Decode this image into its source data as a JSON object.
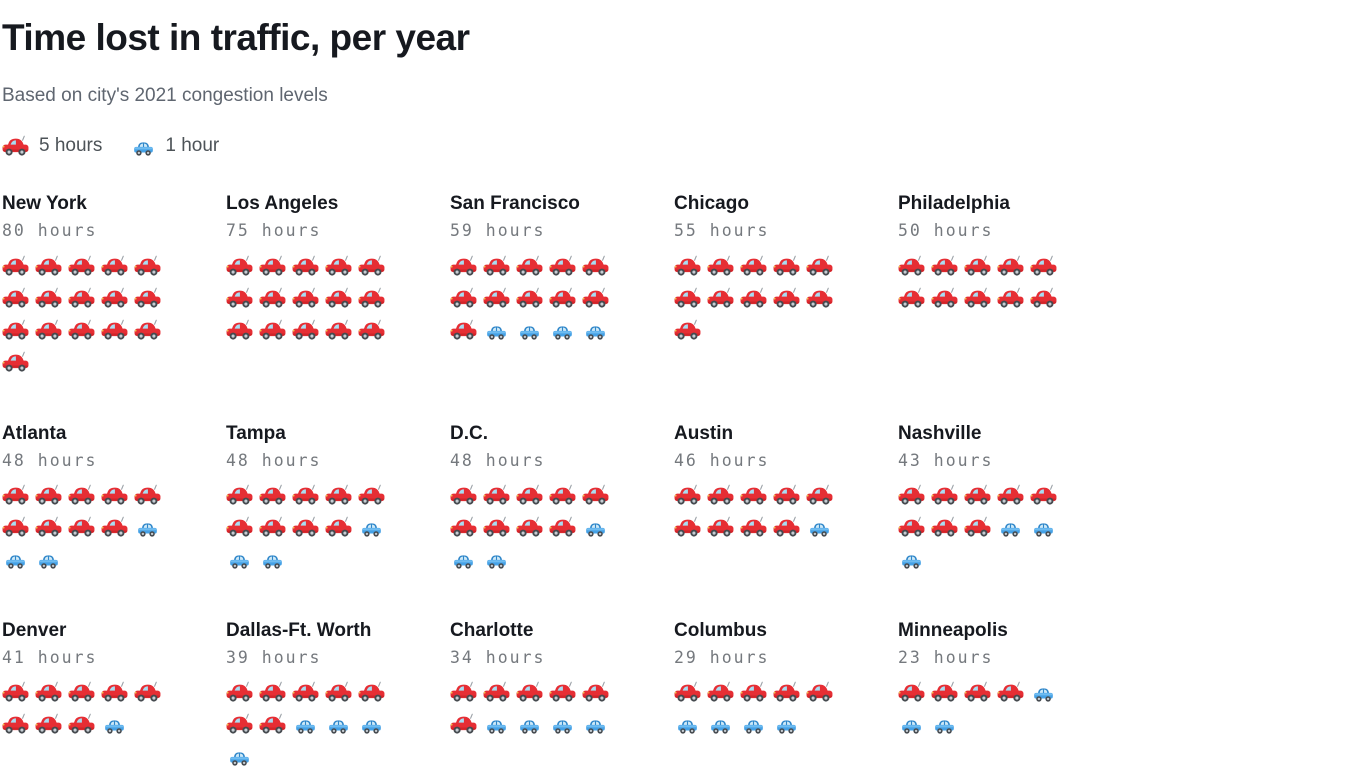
{
  "header": {
    "title": "Time lost in traffic, per year",
    "subtitle": "Based on city's 2021 congestion levels"
  },
  "legend": {
    "items": [
      {
        "icon": "red-car-icon",
        "label": "5 hours",
        "hours_per_icon": 5
      },
      {
        "icon": "blue-car-icon",
        "label": "1 hour",
        "hours_per_icon": 1
      }
    ]
  },
  "chart_data": {
    "type": "bar",
    "variant": "pictogram-unit-chart",
    "title": "Time lost in traffic, per year",
    "subtitle": "Based on city's 2021 congestion levels",
    "unit": "hours",
    "legend": [
      "5 hours",
      "1 hour"
    ],
    "icon_values": {
      "red_car_hours": 5,
      "blue_car_hours": 1
    },
    "icons_per_row": 5,
    "grid_layout": "5 columns x 3 rows of cities",
    "categories": [
      "New York",
      "Los Angeles",
      "San Francisco",
      "Chicago",
      "Philadelphia",
      "Atlanta",
      "Tampa",
      "D.C.",
      "Austin",
      "Nashville",
      "Denver",
      "Dallas-Ft. Worth",
      "Charlotte",
      "Columbus",
      "Minneapolis"
    ],
    "values": [
      80,
      75,
      59,
      55,
      50,
      48,
      48,
      48,
      46,
      43,
      41,
      39,
      34,
      29,
      23
    ],
    "cities": [
      {
        "name": "New York",
        "hours": 80,
        "hours_label": "80 hours",
        "red_cars": 16,
        "blue_cars": 0
      },
      {
        "name": "Los Angeles",
        "hours": 75,
        "hours_label": "75 hours",
        "red_cars": 15,
        "blue_cars": 0
      },
      {
        "name": "San Francisco",
        "hours": 59,
        "hours_label": "59 hours",
        "red_cars": 11,
        "blue_cars": 4
      },
      {
        "name": "Chicago",
        "hours": 55,
        "hours_label": "55 hours",
        "red_cars": 11,
        "blue_cars": 0
      },
      {
        "name": "Philadelphia",
        "hours": 50,
        "hours_label": "50 hours",
        "red_cars": 10,
        "blue_cars": 0
      },
      {
        "name": "Atlanta",
        "hours": 48,
        "hours_label": "48 hours",
        "red_cars": 9,
        "blue_cars": 3
      },
      {
        "name": "Tampa",
        "hours": 48,
        "hours_label": "48 hours",
        "red_cars": 9,
        "blue_cars": 3
      },
      {
        "name": "D.C.",
        "hours": 48,
        "hours_label": "48 hours",
        "red_cars": 9,
        "blue_cars": 3
      },
      {
        "name": "Austin",
        "hours": 46,
        "hours_label": "46 hours",
        "red_cars": 9,
        "blue_cars": 1
      },
      {
        "name": "Nashville",
        "hours": 43,
        "hours_label": "43 hours",
        "red_cars": 8,
        "blue_cars": 3
      },
      {
        "name": "Denver",
        "hours": 41,
        "hours_label": "41 hours",
        "red_cars": 8,
        "blue_cars": 1
      },
      {
        "name": "Dallas-Ft. Worth",
        "hours": 39,
        "hours_label": "39 hours",
        "red_cars": 7,
        "blue_cars": 4
      },
      {
        "name": "Charlotte",
        "hours": 34,
        "hours_label": "34 hours",
        "red_cars": 6,
        "blue_cars": 4
      },
      {
        "name": "Columbus",
        "hours": 29,
        "hours_label": "29 hours",
        "red_cars": 5,
        "blue_cars": 4
      },
      {
        "name": "Minneapolis",
        "hours": 23,
        "hours_label": "23 hours",
        "red_cars": 4,
        "blue_cars": 3
      }
    ]
  },
  "colors": {
    "title_text": "#16191f",
    "subtitle_text": "#5f6670",
    "hours_text": "#75797e",
    "legend_text": "#4d5358",
    "red_car": "#e62e34",
    "blue_car": "#45a1e6",
    "background": "#ffffff"
  }
}
